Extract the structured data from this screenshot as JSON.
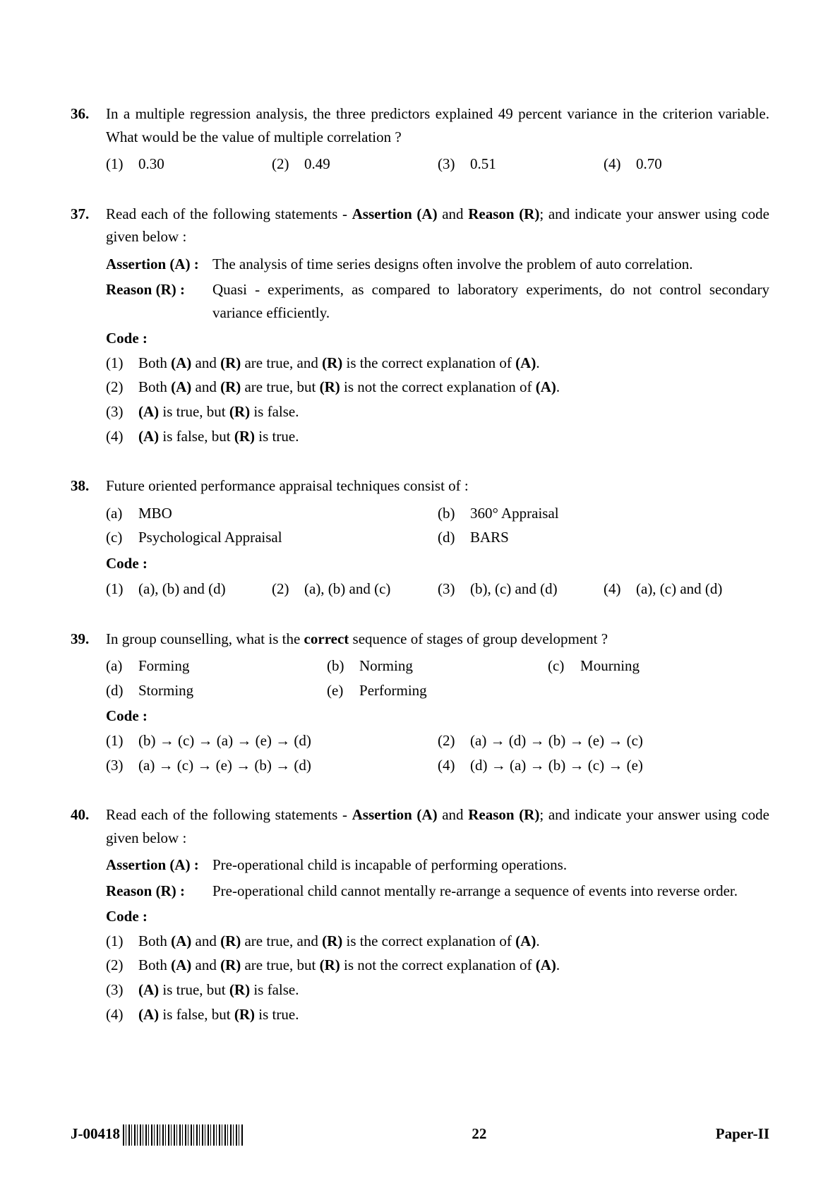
{
  "footer": {
    "left_code": "J-00418",
    "page_number": "22",
    "right_label": "Paper-II"
  },
  "questions": [
    {
      "num": "36.",
      "text": "In a multiple regression analysis, the three predictors explained 49 percent variance in the criterion variable.  What would be the value of multiple correlation ?",
      "options4": [
        "0.30",
        "0.49",
        "0.51",
        "0.70"
      ]
    },
    {
      "num": "37.",
      "text_segments": [
        "Read each of the following statements - ",
        "Assertion (A)",
        " and ",
        "Reason (R)",
        "; and indicate your answer using code given below :"
      ],
      "assertion_label": "Assertion (A) :",
      "assertion_text": "The analysis of time series designs often involve the problem of auto correlation.",
      "reason_label": "Reason (R) :",
      "reason_text": "Quasi - experiments, as compared to laboratory experiments, do not control secondary variance efficiently.",
      "code_label": "Code :",
      "codes": [
        {
          "n": "(1)",
          "pre": "Both ",
          "b1": "(A)",
          "mid1": " and ",
          "b2": "(R)",
          "mid2": " are true, and ",
          "b3": "(R)",
          "mid3": " is the correct explanation of ",
          "b4": "(A)",
          "post": "."
        },
        {
          "n": "(2)",
          "pre": "Both ",
          "b1": "(A)",
          "mid1": " and ",
          "b2": "(R)",
          "mid2": " are true, but ",
          "b3": "(R)",
          "mid3": " is not the correct explanation of ",
          "b4": "(A)",
          "post": "."
        },
        {
          "n": "(3)",
          "b1": "(A)",
          "mid1": " is true, but ",
          "b2": "(R)",
          "post": " is false."
        },
        {
          "n": "(4)",
          "b1": "(A)",
          "mid1": " is false, but ",
          "b2": "(R)",
          "post": " is true."
        }
      ]
    },
    {
      "num": "38.",
      "text": "Future oriented performance appraisal techniques consist of :",
      "subs2": [
        [
          {
            "l": "(a)",
            "t": "MBO"
          },
          {
            "l": "(b)",
            "t": "360° Appraisal"
          }
        ],
        [
          {
            "l": "(c)",
            "t": "Psychological Appraisal"
          },
          {
            "l": "(d)",
            "t": "BARS"
          }
        ]
      ],
      "code_label": "Code :",
      "options4_inline": [
        "(a), (b) and (d)",
        "(a), (b) and (c)",
        "(b), (c) and (d)",
        "(a), (c) and (d)"
      ]
    },
    {
      "num": "39.",
      "text_segments": [
        "In group counselling, what is the ",
        "correct",
        " sequence of stages of group development ?"
      ],
      "subs3": [
        [
          {
            "l": "(a)",
            "t": "Forming"
          },
          {
            "l": "(b)",
            "t": "Norming"
          },
          {
            "l": "(c)",
            "t": "Mourning"
          }
        ],
        [
          {
            "l": "(d)",
            "t": "Storming"
          },
          {
            "l": "(e)",
            "t": "Performing"
          }
        ]
      ],
      "code_label": "Code :",
      "seq_opts": [
        [
          {
            "n": "(1)",
            "t": "(b) → (c) → (a) → (e) → (d)"
          },
          {
            "n": "(2)",
            "t": "(a) → (d) → (b) → (e) → (c)"
          }
        ],
        [
          {
            "n": "(3)",
            "t": "(a) → (c) → (e) → (b) → (d)"
          },
          {
            "n": "(4)",
            "t": "(d) → (a) → (b) → (c) → (e)"
          }
        ]
      ]
    },
    {
      "num": "40.",
      "text_segments": [
        "Read each of the following statements - ",
        "Assertion (A)",
        " and ",
        "Reason (R)",
        "; and indicate your answer using code given below :"
      ],
      "assertion_label": "Assertion (A) :",
      "assertion_text": "Pre-operational child is incapable of performing operations.",
      "reason_label": "Reason (R) :",
      "reason_text": "Pre-operational child cannot mentally re-arrange a sequence of events into reverse order.",
      "code_label": "Code :",
      "codes": [
        {
          "n": "(1)",
          "pre": "Both ",
          "b1": "(A)",
          "mid1": " and ",
          "b2": "(R)",
          "mid2": " are true, and ",
          "b3": "(R)",
          "mid3": " is the correct explanation of ",
          "b4": "(A)",
          "post": "."
        },
        {
          "n": "(2)",
          "pre": "Both ",
          "b1": "(A)",
          "mid1": " and ",
          "b2": "(R)",
          "mid2": " are true, but ",
          "b3": "(R)",
          "mid3": " is not the correct explanation of ",
          "b4": "(A)",
          "post": "."
        },
        {
          "n": "(3)",
          "b1": "(A)",
          "mid1": " is true, but ",
          "b2": "(R)",
          "post": " is false."
        },
        {
          "n": "(4)",
          "b1": "(A)",
          "mid1": " is false, but ",
          "b2": "(R)",
          "post": " is true."
        }
      ]
    }
  ]
}
